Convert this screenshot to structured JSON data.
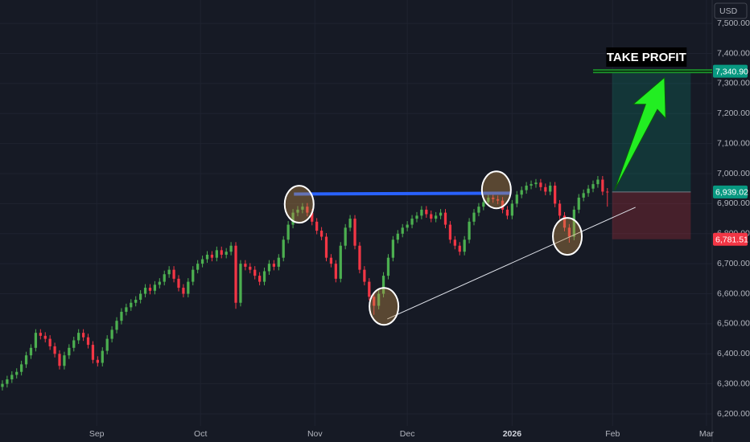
{
  "chart_data": {
    "type": "candlestick",
    "currency": "USD",
    "up_color": "#4caf50",
    "down_color": "#f23645",
    "xlim": [
      -0.5,
      149
    ],
    "ylim": [
      6160,
      7578
    ],
    "yticks": [
      {
        "value": 6200,
        "label": "6,200.00"
      },
      {
        "value": 6300,
        "label": "6,300.00"
      },
      {
        "value": 6400,
        "label": "6,400.00"
      },
      {
        "value": 6500,
        "label": "6,500.00"
      },
      {
        "value": 6600,
        "label": "6,600.00"
      },
      {
        "value": 6700,
        "label": "6,700.00"
      },
      {
        "value": 6800,
        "label": "6,800.00"
      },
      {
        "value": 6900,
        "label": "6,900.00"
      },
      {
        "value": 7000,
        "label": "7,000.00"
      },
      {
        "value": 7100,
        "label": "7,100.00"
      },
      {
        "value": 7200,
        "label": "7,200.00"
      },
      {
        "value": 7300,
        "label": "7,300.00"
      },
      {
        "value": 7400,
        "label": "7,400.00"
      },
      {
        "value": 7500,
        "label": "7,500.00"
      }
    ],
    "xticks": [
      {
        "value": 19.8,
        "label": "Sep"
      },
      {
        "value": 41.6,
        "label": "Oct"
      },
      {
        "value": 65.6,
        "label": "Nov"
      },
      {
        "value": 85,
        "label": "Dec"
      },
      {
        "value": 107,
        "label": "2026",
        "bold": true
      },
      {
        "value": 128.1,
        "label": "Feb"
      },
      {
        "value": 147.8,
        "label": "Mar"
      }
    ],
    "series": {
      "open": [
        6290,
        6300,
        6315,
        6330,
        6340,
        6365,
        6395,
        6420,
        6470,
        6460,
        6450,
        6425,
        6400,
        6360,
        6395,
        6420,
        6445,
        6470,
        6455,
        6430,
        6380,
        6370,
        6410,
        6450,
        6480,
        6510,
        6540,
        6555,
        6570,
        6580,
        6600,
        6620,
        6610,
        6630,
        6640,
        6665,
        6680,
        6650,
        6620,
        6600,
        6640,
        6680,
        6700,
        6715,
        6730,
        6720,
        6745,
        6730,
        6740,
        6760,
        6570,
        6700,
        6690,
        6680,
        6660,
        6640,
        6675,
        6700,
        6690,
        6720,
        6780,
        6830,
        6870,
        6880,
        6890,
        6870,
        6840,
        6810,
        6790,
        6720,
        6700,
        6650,
        6760,
        6820,
        6850,
        6760,
        6680,
        6640,
        6590,
        6560,
        6600,
        6660,
        6720,
        6780,
        6800,
        6820,
        6830,
        6850,
        6860,
        6880,
        6865,
        6850,
        6860,
        6870,
        6830,
        6780,
        6760,
        6740,
        6780,
        6840,
        6870,
        6890,
        6905,
        6920,
        6915,
        6910,
        6880,
        6860,
        6900,
        6930,
        6945,
        6960,
        6965,
        6970,
        6955,
        6940,
        6960,
        6900,
        6860,
        6820,
        6790,
        6880,
        6920,
        6935,
        6950,
        6965,
        6980,
        6940
      ],
      "high": [
        6312,
        6327,
        6342,
        6352,
        6377,
        6407,
        6432,
        6482,
        6482,
        6472,
        6462,
        6437,
        6412,
        6407,
        6432,
        6457,
        6482,
        6482,
        6467,
        6442,
        6392,
        6422,
        6462,
        6492,
        6522,
        6552,
        6567,
        6582,
        6592,
        6612,
        6632,
        6632,
        6642,
        6652,
        6677,
        6692,
        6692,
        6662,
        6632,
        6652,
        6692,
        6712,
        6727,
        6742,
        6742,
        6757,
        6757,
        6752,
        6772,
        6772,
        6712,
        6712,
        6702,
        6692,
        6672,
        6687,
        6712,
        6712,
        6732,
        6792,
        6842,
        6882,
        6892,
        6902,
        6902,
        6882,
        6852,
        6822,
        6802,
        6732,
        6712,
        6772,
        6832,
        6862,
        6862,
        6772,
        6692,
        6652,
        6602,
        6612,
        6672,
        6732,
        6792,
        6812,
        6832,
        6842,
        6862,
        6872,
        6892,
        6892,
        6877,
        6872,
        6882,
        6882,
        6842,
        6792,
        6772,
        6792,
        6852,
        6882,
        6902,
        6917,
        6932,
        6932,
        6927,
        6922,
        6892,
        6912,
        6942,
        6957,
        6972,
        6977,
        6982,
        6982,
        6967,
        6972,
        6972,
        6912,
        6872,
        6832,
        6892,
        6932,
        6947,
        6962,
        6977,
        6992,
        6992,
        6952
      ],
      "low": [
        6278,
        6288,
        6303,
        6318,
        6328,
        6353,
        6383,
        6408,
        6448,
        6438,
        6413,
        6388,
        6348,
        6348,
        6383,
        6408,
        6433,
        6443,
        6418,
        6368,
        6358,
        6358,
        6398,
        6438,
        6468,
        6498,
        6528,
        6543,
        6558,
        6568,
        6588,
        6598,
        6598,
        6618,
        6628,
        6653,
        6638,
        6608,
        6588,
        6588,
        6628,
        6668,
        6688,
        6703,
        6708,
        6708,
        6718,
        6718,
        6728,
        6550,
        6558,
        6678,
        6668,
        6648,
        6628,
        6628,
        6663,
        6678,
        6678,
        6708,
        6768,
        6818,
        6858,
        6868,
        6858,
        6828,
        6798,
        6778,
        6708,
        6688,
        6638,
        6638,
        6748,
        6808,
        6748,
        6668,
        6628,
        6578,
        6530,
        6548,
        6588,
        6648,
        6708,
        6768,
        6788,
        6808,
        6818,
        6838,
        6848,
        6853,
        6838,
        6838,
        6848,
        6818,
        6768,
        6748,
        6728,
        6728,
        6768,
        6828,
        6858,
        6878,
        6893,
        6903,
        6898,
        6868,
        6848,
        6848,
        6888,
        6918,
        6933,
        6948,
        6953,
        6943,
        6928,
        6928,
        6888,
        6848,
        6808,
        6770,
        6778,
        6868,
        6908,
        6923,
        6938,
        6953,
        6928,
        6890
      ],
      "close": [
        6300,
        6315,
        6330,
        6340,
        6365,
        6395,
        6420,
        6470,
        6460,
        6450,
        6425,
        6400,
        6360,
        6395,
        6420,
        6445,
        6470,
        6455,
        6430,
        6380,
        6370,
        6410,
        6450,
        6480,
        6510,
        6540,
        6555,
        6570,
        6580,
        6600,
        6620,
        6610,
        6630,
        6640,
        6665,
        6680,
        6650,
        6620,
        6600,
        6640,
        6680,
        6700,
        6715,
        6730,
        6720,
        6745,
        6730,
        6740,
        6760,
        6570,
        6700,
        6690,
        6680,
        6660,
        6640,
        6675,
        6700,
        6690,
        6720,
        6780,
        6830,
        6870,
        6880,
        6890,
        6870,
        6840,
        6810,
        6790,
        6720,
        6700,
        6650,
        6760,
        6820,
        6850,
        6760,
        6680,
        6640,
        6590,
        6560,
        6600,
        6660,
        6720,
        6780,
        6800,
        6820,
        6830,
        6850,
        6860,
        6880,
        6865,
        6850,
        6860,
        6870,
        6830,
        6780,
        6760,
        6740,
        6780,
        6840,
        6870,
        6890,
        6905,
        6920,
        6915,
        6910,
        6880,
        6860,
        6900,
        6930,
        6945,
        6960,
        6965,
        6970,
        6955,
        6940,
        6960,
        6900,
        6860,
        6820,
        6790,
        6880,
        6920,
        6935,
        6950,
        6965,
        6980,
        6940,
        6939.02
      ]
    },
    "price_labels": [
      {
        "value": 7340.9,
        "label": "7,340.90",
        "color": "#089981"
      },
      {
        "value": 6939.02,
        "label": "6,939.02",
        "color": "#089981"
      },
      {
        "value": 6781.51,
        "label": "6,781.51",
        "color": "#f23645"
      }
    ],
    "position": {
      "x": [
        128,
        144.5
      ],
      "entry": 6939.02,
      "target": 7340.9,
      "stop": 6781.51
    },
    "take_profit": {
      "text": "TAKE PROFIT",
      "x": 135.2,
      "y": 7388,
      "line_x": [
        124,
        149
      ],
      "line_y": 7340.9
    },
    "arrow": {
      "x": [
        128.5,
        139
      ],
      "y": [
        6945,
        7320
      ]
    },
    "resistance": {
      "x": [
        61.2,
        106.8
      ],
      "y": [
        6932,
        6935
      ]
    },
    "trendline": {
      "x": [
        80.8,
        132.9
      ],
      "y": [
        6516,
        6888
      ]
    },
    "circles": {
      "x": [
        62.3,
        103.7,
        80.1,
        118.6
      ],
      "y": [
        6898,
        6946,
        6558,
        6791
      ]
    }
  }
}
